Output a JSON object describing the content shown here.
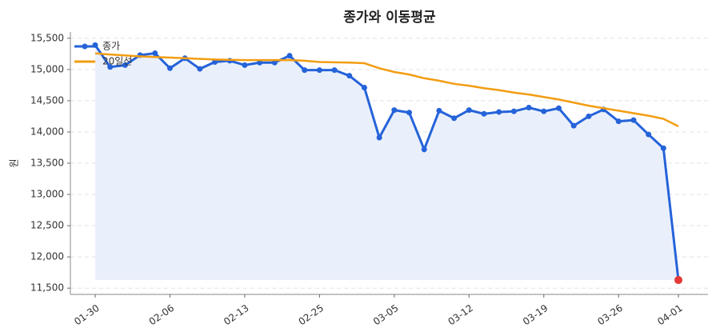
{
  "chart_data": {
    "type": "line",
    "title": "종가와 이동평균",
    "y_label": "원",
    "categories": [
      "01-30",
      null,
      null,
      null,
      null,
      "02-06",
      null,
      null,
      null,
      null,
      "02-13",
      null,
      null,
      null,
      null,
      "02-25",
      null,
      null,
      null,
      null,
      "03-05",
      null,
      null,
      null,
      null,
      "03-12",
      null,
      null,
      null,
      null,
      "03-19",
      null,
      null,
      null,
      null,
      "03-26",
      null,
      null,
      null,
      "04-01"
    ],
    "series": [
      {
        "name": "종가",
        "color": "#2563d9",
        "markers": true,
        "fill": "#e8eefb",
        "values": [
          15390,
          15040,
          15070,
          15230,
          15260,
          15020,
          15180,
          15010,
          15120,
          15140,
          15070,
          15110,
          15110,
          15220,
          14990,
          14990,
          14990,
          14900,
          14710,
          13910,
          14350,
          14310,
          13720,
          14340,
          14220,
          14350,
          14290,
          14320,
          14330,
          14390,
          14330,
          14380,
          14100,
          14250,
          14360,
          14170,
          14190,
          13960,
          13740,
          11630
        ]
      },
      {
        "name": "20일선",
        "color": "#f29d12",
        "markers": false,
        "values": [
          15257,
          15240,
          15225,
          15210,
          15200,
          15190,
          15180,
          15170,
          15160,
          15155,
          15150,
          15150,
          15150,
          15150,
          15140,
          15120,
          15115,
          15110,
          15100,
          15020,
          14960,
          14920,
          14860,
          14820,
          14770,
          14740,
          14700,
          14670,
          14630,
          14600,
          14560,
          14520,
          14470,
          14420,
          14380,
          14340,
          14300,
          14260,
          14210,
          14090
        ]
      }
    ],
    "last_point_color": "#e53935",
    "ylim": [
      11400,
      15600
    ],
    "yticks": [
      {
        "value": 11500,
        "label": "11,500"
      },
      {
        "value": 12000,
        "label": "12,000"
      },
      {
        "value": 12500,
        "label": "12,500"
      },
      {
        "value": 13000,
        "label": "13,000"
      },
      {
        "value": 13500,
        "label": "13,500"
      },
      {
        "value": 14000,
        "label": "14,000"
      },
      {
        "value": 14500,
        "label": "14,500"
      },
      {
        "value": 15000,
        "label": "15,000"
      },
      {
        "value": 15500,
        "label": "15,500"
      }
    ],
    "grid": true,
    "legend": "upper-left"
  }
}
